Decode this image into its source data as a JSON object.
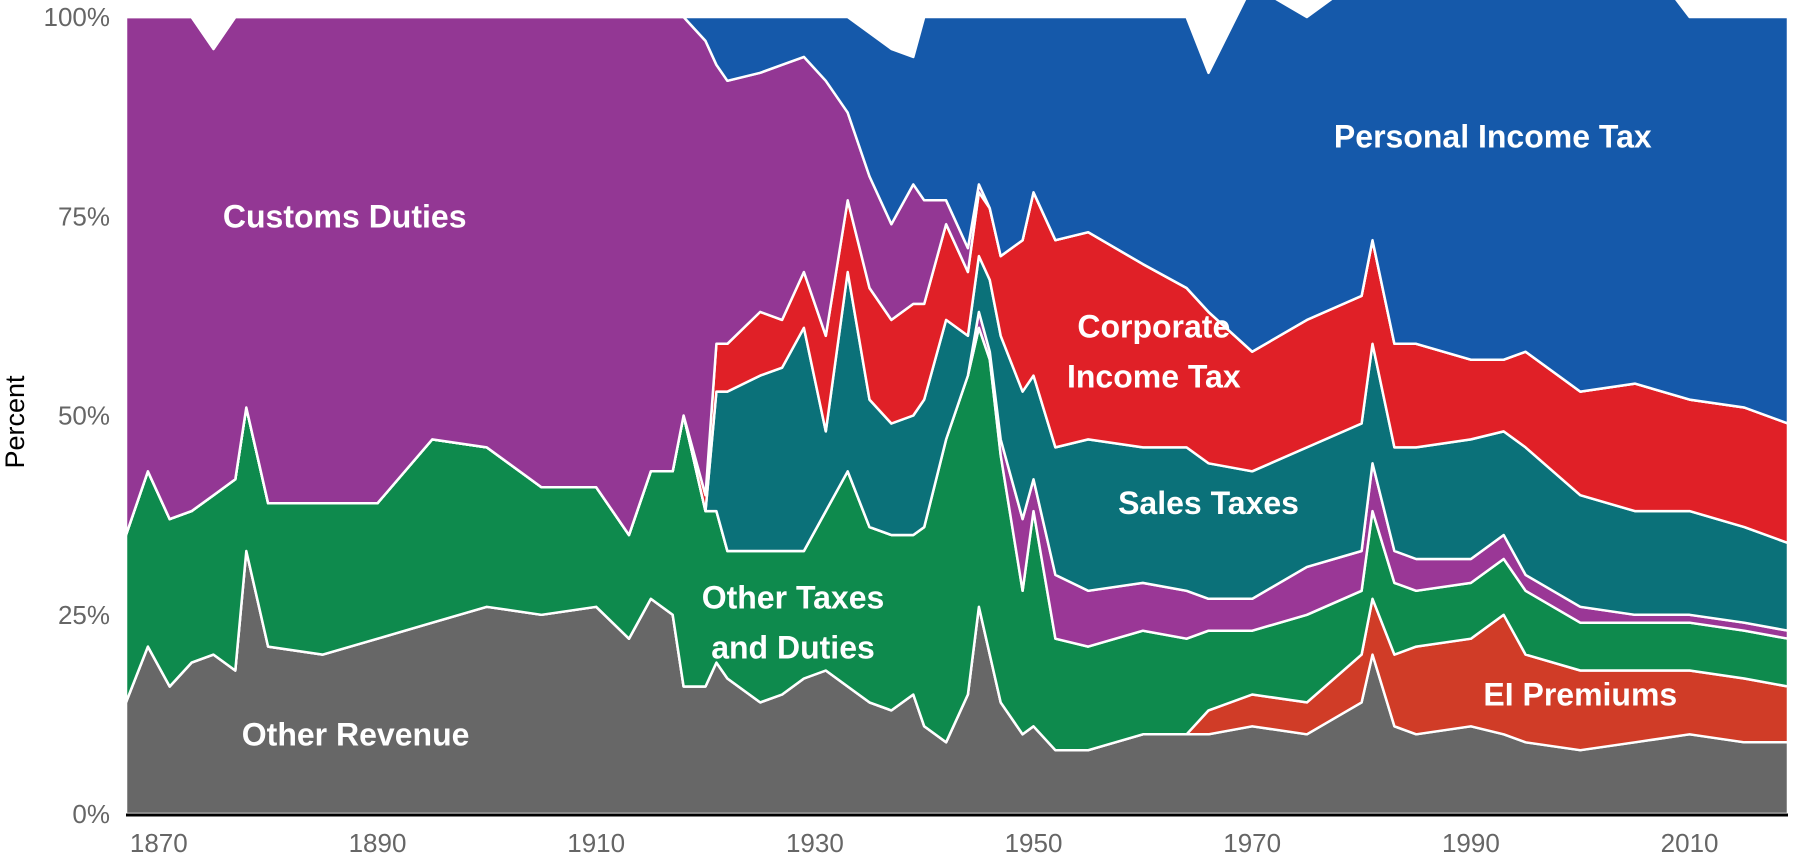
{
  "chart_data": {
    "type": "area",
    "stacked": true,
    "normalized_percent": true,
    "ylabel": "Percent",
    "xlabel": "",
    "xlim": [
      1867,
      2019
    ],
    "ylim": [
      0,
      100
    ],
    "y_ticks": [
      0,
      25,
      50,
      75,
      100
    ],
    "y_tick_labels": [
      "0%",
      "25%",
      "50%",
      "75%",
      "100%"
    ],
    "x_ticks": [
      1870,
      1890,
      1910,
      1930,
      1950,
      1970,
      1990,
      2010
    ],
    "x_tick_labels": [
      "1870",
      "1890",
      "1910",
      "1930",
      "1950",
      "1970",
      "1990",
      "2010"
    ],
    "grid": false,
    "legend": "none (labels inside areas)",
    "x": [
      1867,
      1869,
      1871,
      1873,
      1875,
      1877,
      1878,
      1880,
      1885,
      1890,
      1895,
      1900,
      1905,
      1910,
      1913,
      1915,
      1917,
      1918,
      1920,
      1921,
      1922,
      1925,
      1927,
      1929,
      1931,
      1933,
      1935,
      1937,
      1939,
      1940,
      1942,
      1944,
      1945,
      1946,
      1947,
      1949,
      1950,
      1952,
      1955,
      1960,
      1964,
      1966,
      1970,
      1975,
      1980,
      1981,
      1983,
      1985,
      1990,
      1993,
      1995,
      2000,
      2005,
      2010,
      2015,
      2019
    ],
    "series_order_bottom_to_top": [
      "Other Revenue",
      "EI Premiums",
      "Other Taxes and Duties",
      "Sales Taxes (lower)",
      "Sales Taxes",
      "Corporate Income Tax",
      "Customs Duties",
      "Personal Income Tax"
    ],
    "series": [
      {
        "name": "Other Revenue",
        "color": "#676767",
        "label_year": 1888,
        "label_value": 10,
        "values": [
          14,
          21,
          16,
          19,
          20,
          18,
          33,
          21,
          20,
          22,
          24,
          26,
          25,
          26,
          22,
          27,
          25,
          16,
          16,
          19,
          17,
          14,
          15,
          17,
          18,
          16,
          14,
          13,
          15,
          11,
          9,
          15,
          26,
          20,
          14,
          10,
          11,
          8,
          8,
          10,
          10,
          10,
          11,
          10,
          14,
          20,
          11,
          10,
          11,
          10,
          9,
          8,
          9,
          10,
          9,
          9
        ]
      },
      {
        "name": "EI Premiums",
        "color": "#d03c27",
        "label_year": 2000,
        "label_value": 15,
        "values": [
          0,
          0,
          0,
          0,
          0,
          0,
          0,
          0,
          0,
          0,
          0,
          0,
          0,
          0,
          0,
          0,
          0,
          0,
          0,
          0,
          0,
          0,
          0,
          0,
          0,
          0,
          0,
          0,
          0,
          0,
          0,
          0,
          0,
          0,
          0,
          0,
          0,
          0,
          0,
          0,
          0,
          3,
          4,
          4,
          6,
          7,
          9,
          11,
          11,
          15,
          11,
          10,
          9,
          8,
          8,
          7
        ]
      },
      {
        "name": "Other Taxes and Duties",
        "color": "#0e8a4d",
        "label_year": 1928,
        "label_value": 24,
        "values": [
          21,
          22,
          21,
          19,
          20,
          24,
          18,
          18,
          19,
          17,
          23,
          20,
          16,
          15,
          13,
          16,
          18,
          34,
          22,
          19,
          16,
          19,
          18,
          16,
          20,
          27,
          22,
          22,
          20,
          25,
          38,
          40,
          35,
          37,
          31,
          18,
          27,
          14,
          13,
          13,
          12,
          10,
          8,
          11,
          8,
          11,
          9,
          7,
          7,
          7,
          8,
          6,
          6,
          6,
          6,
          6
        ]
      },
      {
        "name": "Sales Taxes (lower)",
        "color": "#9a3796",
        "values": [
          0,
          0,
          0,
          0,
          0,
          0,
          0,
          0,
          0,
          0,
          0,
          0,
          0,
          0,
          0,
          0,
          0,
          0,
          0,
          0,
          0,
          0,
          0,
          0,
          0,
          0,
          0,
          0,
          0,
          0,
          0,
          0,
          2,
          1,
          2,
          9,
          4,
          8,
          7,
          6,
          6,
          4,
          4,
          6,
          5,
          6,
          4,
          4,
          3,
          3,
          2,
          2,
          1,
          1,
          1,
          1
        ]
      },
      {
        "name": "Sales Taxes",
        "color": "#0b7179",
        "label_year": 1966,
        "label_value": 39,
        "values": [
          0,
          0,
          0,
          0,
          0,
          0,
          0,
          0,
          0,
          0,
          0,
          0,
          0,
          0,
          0,
          0,
          0,
          0,
          0,
          15,
          20,
          22,
          23,
          28,
          10,
          25,
          16,
          14,
          15,
          16,
          15,
          5,
          7,
          9,
          13,
          16,
          13,
          16,
          19,
          17,
          18,
          17,
          16,
          15,
          16,
          15,
          13,
          14,
          15,
          13,
          16,
          14,
          13,
          13,
          12,
          11
        ]
      },
      {
        "name": "Corporate Income Tax",
        "color": "#e02027",
        "label_year": 1961,
        "label_value": 58,
        "values": [
          0,
          0,
          0,
          0,
          0,
          0,
          0,
          0,
          0,
          0,
          0,
          0,
          0,
          0,
          0,
          0,
          0,
          0,
          2,
          6,
          6,
          8,
          6,
          7,
          12,
          9,
          14,
          13,
          14,
          12,
          12,
          8,
          8,
          9,
          10,
          19,
          23,
          26,
          26,
          23,
          20,
          19,
          15,
          16,
          16,
          13,
          13,
          13,
          10,
          9,
          12,
          13,
          16,
          14,
          15,
          15
        ]
      },
      {
        "name": "Customs Duties",
        "color": "#933794",
        "label_year": 1887,
        "label_value": 75,
        "values": [
          65,
          57,
          63,
          62,
          56,
          58,
          49,
          61,
          61,
          61,
          53,
          54,
          59,
          59,
          65,
          57,
          57,
          50,
          57,
          35,
          33,
          30,
          32,
          27,
          32,
          11,
          14,
          12,
          15,
          13,
          3,
          3,
          1,
          0,
          0,
          0,
          0,
          0,
          0,
          0,
          0,
          0,
          0,
          0,
          0,
          0,
          0,
          0,
          0,
          0,
          0,
          0,
          0,
          0,
          0,
          0
        ]
      },
      {
        "name": "Personal Income Tax",
        "color": "#1559aa",
        "label_year": 1992,
        "label_value": 85,
        "values": [
          0,
          0,
          0,
          0,
          0,
          0,
          0,
          0,
          0,
          0,
          0,
          0,
          0,
          0,
          0,
          0,
          0,
          0,
          3,
          6,
          8,
          7,
          6,
          5,
          8,
          12,
          18,
          22,
          16,
          23,
          23,
          29,
          21,
          24,
          30,
          28,
          22,
          28,
          27,
          31,
          34,
          30,
          46,
          38,
          40,
          35,
          50,
          51,
          54,
          50,
          49,
          57,
          55,
          48,
          49,
          51
        ]
      }
    ],
    "labels": [
      {
        "series": "Customs Duties",
        "lines": [
          "Customs Duties"
        ]
      },
      {
        "series": "Personal Income Tax",
        "lines": [
          "Personal Income Tax"
        ]
      },
      {
        "series": "Corporate Income Tax",
        "lines": [
          "Corporate",
          "Income Tax"
        ]
      },
      {
        "series": "Sales Taxes",
        "lines": [
          "Sales Taxes"
        ]
      },
      {
        "series": "Other Taxes and Duties",
        "lines": [
          "Other Taxes",
          "and Duties"
        ]
      },
      {
        "series": "EI Premiums",
        "lines": [
          "EI Premiums"
        ]
      },
      {
        "series": "Other Revenue",
        "lines": [
          "Other Revenue"
        ]
      }
    ]
  }
}
